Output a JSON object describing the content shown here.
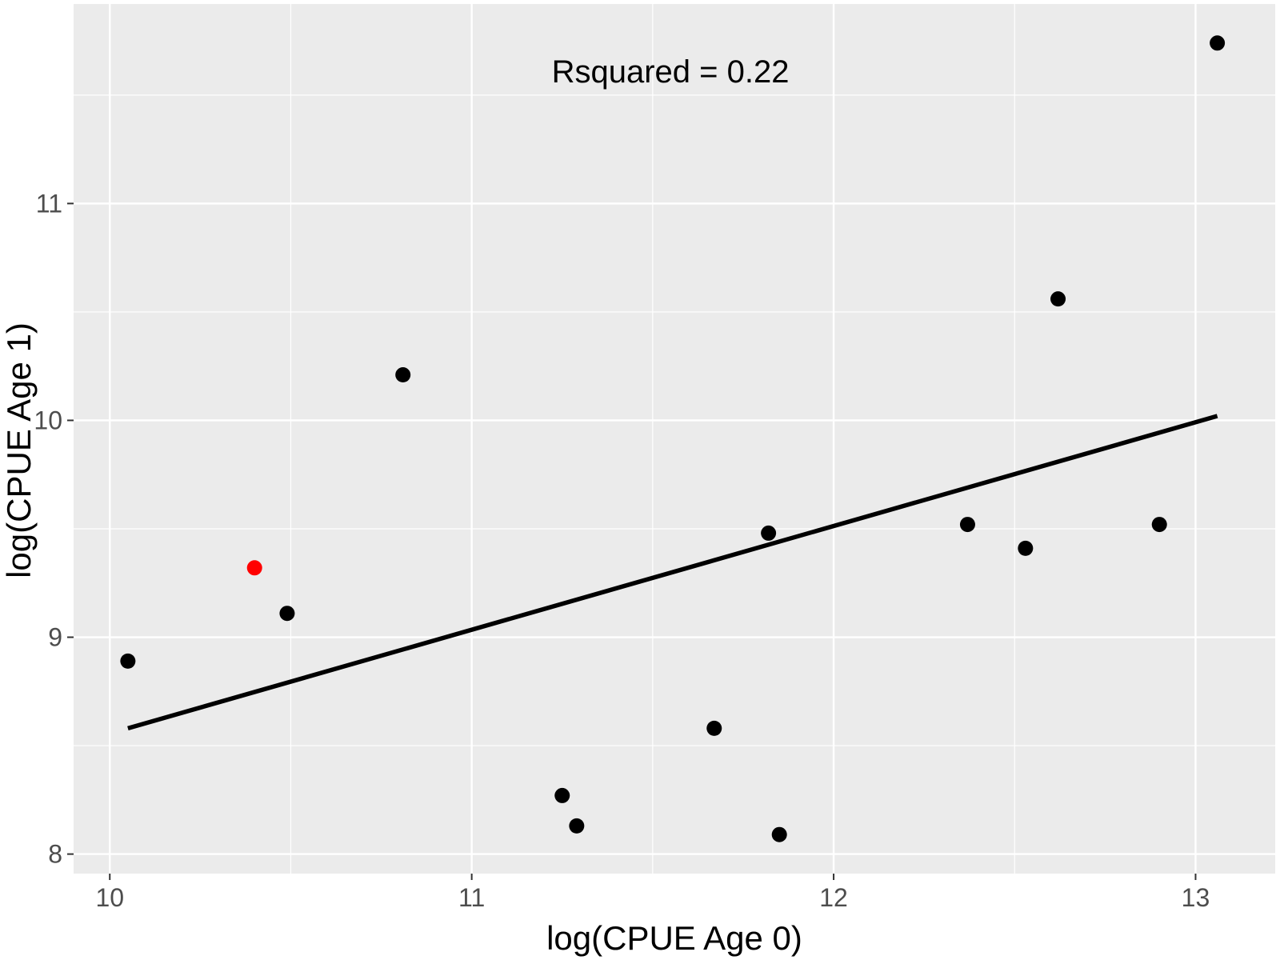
{
  "chart_data": {
    "type": "scatter",
    "title": "",
    "xlabel": "log(CPUE Age 0)",
    "ylabel": "log(CPUE Age 1)",
    "xlim": [
      9.9,
      13.22
    ],
    "ylim": [
      7.91,
      11.92
    ],
    "x_ticks": [
      10,
      11,
      12,
      13
    ],
    "y_ticks": [
      8,
      9,
      10,
      11
    ],
    "grid": true,
    "legend": "none",
    "annotation": "Rsquared = 0.22",
    "colors": {
      "panel_background": "#ebebeb",
      "grid": "#ffffff",
      "point": "#000000",
      "highlight_point": "#ff0000",
      "fit_line": "#000000"
    },
    "points": [
      {
        "x": 10.05,
        "y": 8.89,
        "highlight": false
      },
      {
        "x": 10.4,
        "y": 9.32,
        "highlight": true
      },
      {
        "x": 10.49,
        "y": 9.11,
        "highlight": false
      },
      {
        "x": 10.81,
        "y": 10.21,
        "highlight": false
      },
      {
        "x": 11.25,
        "y": 8.27,
        "highlight": false
      },
      {
        "x": 11.29,
        "y": 8.13,
        "highlight": false
      },
      {
        "x": 11.67,
        "y": 8.58,
        "highlight": false
      },
      {
        "x": 11.82,
        "y": 9.48,
        "highlight": false
      },
      {
        "x": 11.85,
        "y": 8.09,
        "highlight": false
      },
      {
        "x": 12.37,
        "y": 9.52,
        "highlight": false
      },
      {
        "x": 12.53,
        "y": 9.41,
        "highlight": false
      },
      {
        "x": 12.62,
        "y": 10.56,
        "highlight": false
      },
      {
        "x": 12.9,
        "y": 9.52,
        "highlight": false
      },
      {
        "x": 13.06,
        "y": 11.74,
        "highlight": false
      }
    ],
    "fit_line": {
      "x": [
        10.05,
        13.06
      ],
      "y": [
        8.58,
        10.02
      ]
    }
  }
}
